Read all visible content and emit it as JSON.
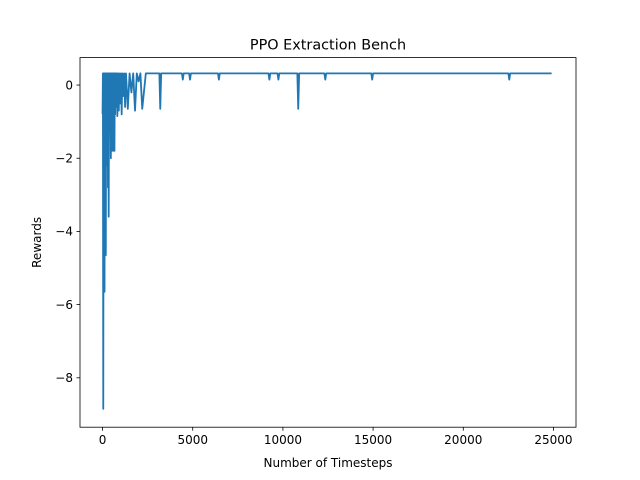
{
  "chart_data": {
    "type": "line",
    "title": "PPO Extraction Bench",
    "xlabel": "Number of Timesteps",
    "ylabel": "Rewards",
    "xlim": [
      -1250,
      26250
    ],
    "ylim": [
      -9.35,
      0.75
    ],
    "x_ticks": [
      0,
      5000,
      10000,
      15000,
      20000,
      25000
    ],
    "x_tick_labels": [
      "0",
      "5000",
      "10000",
      "15000",
      "20000",
      "25000"
    ],
    "y_ticks": [
      0,
      -2,
      -4,
      -6,
      -8
    ],
    "y_tick_labels": [
      "0",
      "−2",
      "−4",
      "−6",
      "−8"
    ],
    "grid": false,
    "legend": "none",
    "line_color": "#1f77b4",
    "series": [
      {
        "x": [
          0,
          20,
          40,
          60,
          80,
          100,
          110,
          120,
          140,
          160,
          180,
          200,
          220,
          240,
          260,
          280,
          300,
          320,
          340,
          360,
          380,
          400,
          420,
          440,
          460,
          480,
          500,
          520,
          540,
          560,
          580,
          600,
          620,
          640,
          660,
          680,
          700,
          720,
          740,
          760,
          780,
          800,
          820,
          860,
          900,
          940,
          980,
          1020,
          1060,
          1100,
          1150,
          1200,
          1250,
          1300,
          1400,
          1500,
          1600,
          1700,
          1800,
          1900,
          2000,
          2100,
          2200,
          2400,
          2600,
          2800,
          3000,
          3150,
          3200,
          3250,
          3500,
          4000,
          4400,
          4450,
          4500,
          4800,
          4850,
          4900,
          5500,
          6400,
          6450,
          6500,
          8000,
          9200,
          9250,
          9300,
          9700,
          9750,
          9800,
          10800,
          10850,
          10900,
          11500,
          12300,
          12350,
          12400,
          14000,
          14900,
          14950,
          15000,
          18000,
          22500,
          22550,
          22600,
          24900
        ],
        "y": [
          -0.8,
          0.32,
          -8.85,
          0.32,
          -2.7,
          0.32,
          -5.65,
          0.32,
          -1.5,
          0.32,
          -4.65,
          0.32,
          -2.2,
          0.32,
          -1.0,
          0.32,
          -2.8,
          0.32,
          -3.6,
          0.32,
          -1.3,
          0.32,
          -0.7,
          0.32,
          -2.0,
          0.32,
          -1.8,
          0.32,
          -0.9,
          0.32,
          -1.8,
          0.32,
          -0.5,
          0.32,
          -1.8,
          0.32,
          -0.8,
          0.32,
          -0.6,
          0.32,
          -0.4,
          0.32,
          -0.85,
          0.32,
          -0.7,
          0.32,
          -0.5,
          0.32,
          -0.8,
          0.32,
          -0.3,
          0.32,
          -0.6,
          0.32,
          -0.65,
          0.32,
          -0.2,
          0.32,
          -0.7,
          0.32,
          0.1,
          0.32,
          -0.65,
          0.32,
          0.32,
          0.32,
          0.32,
          0.32,
          -0.65,
          0.32,
          0.32,
          0.32,
          0.32,
          0.15,
          0.32,
          0.32,
          0.15,
          0.32,
          0.32,
          0.32,
          0.15,
          0.32,
          0.32,
          0.32,
          0.15,
          0.32,
          0.32,
          0.15,
          0.32,
          0.32,
          -0.65,
          0.32,
          0.32,
          0.32,
          0.15,
          0.32,
          0.32,
          0.32,
          0.15,
          0.32,
          0.32,
          0.32,
          0.15,
          0.32,
          0.32
        ]
      }
    ]
  }
}
